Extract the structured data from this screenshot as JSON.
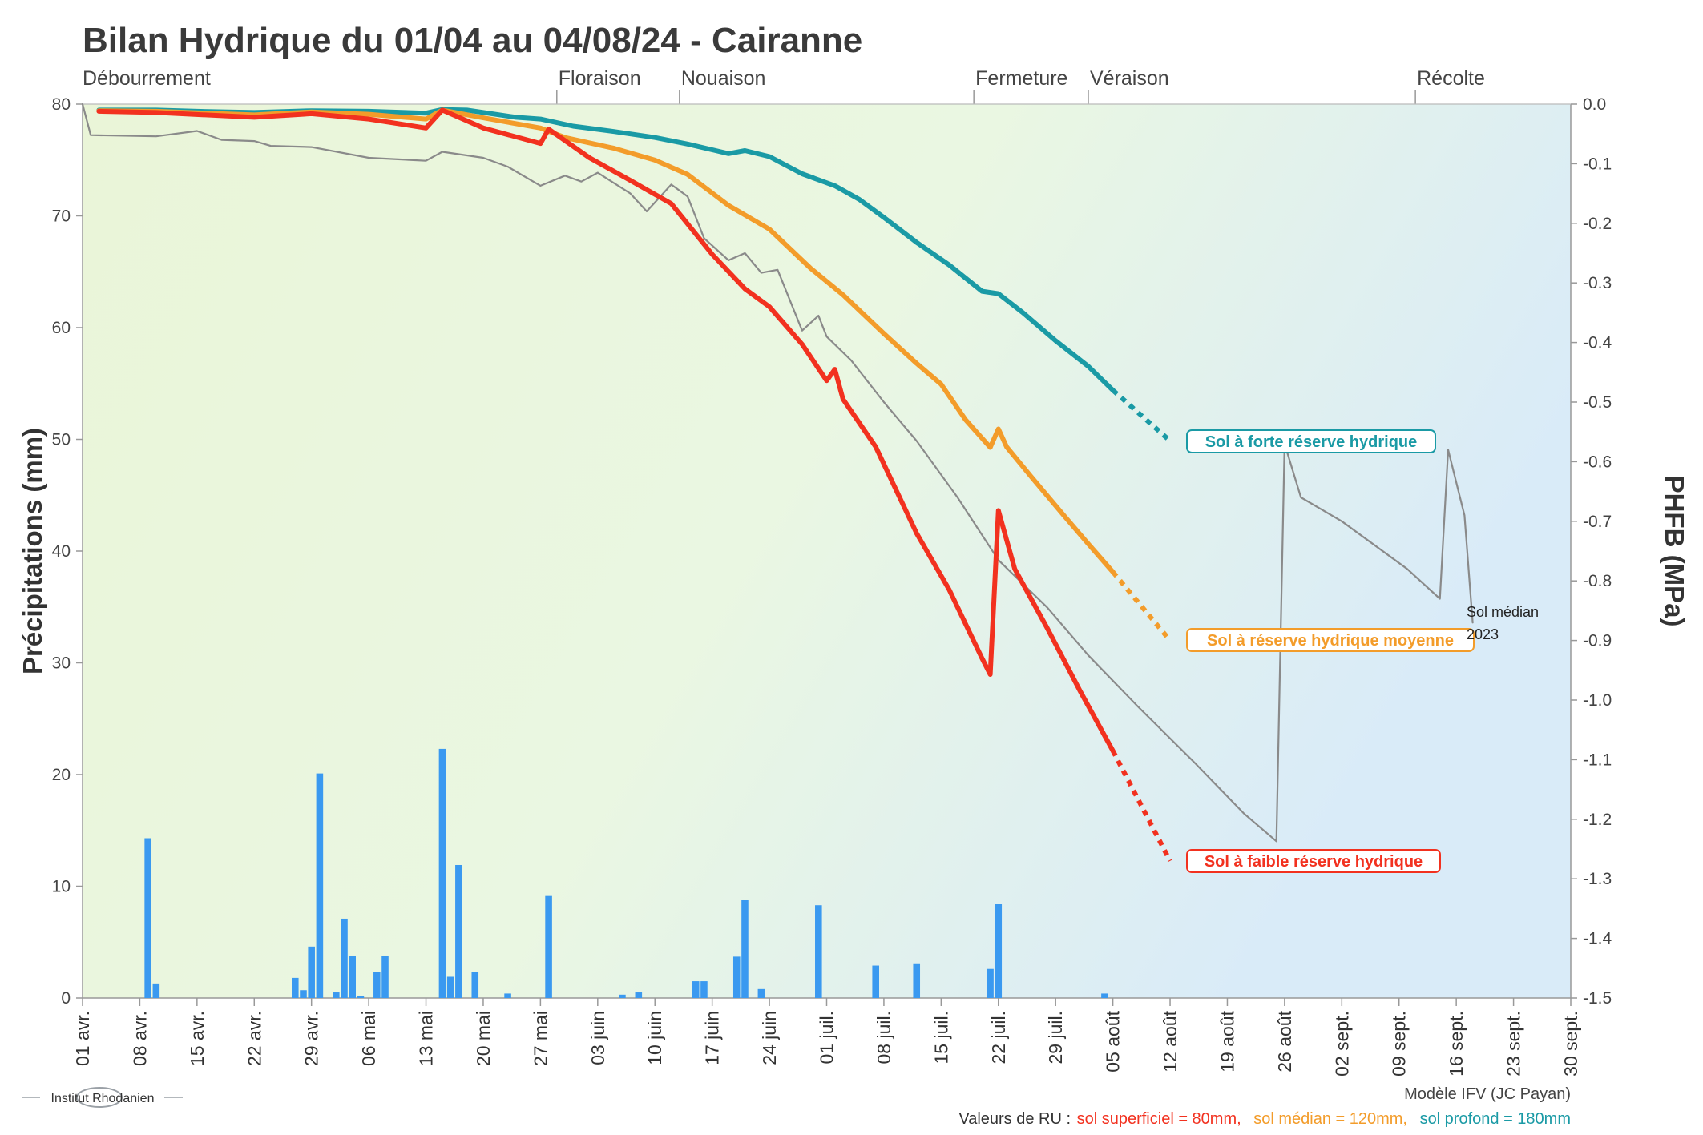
{
  "chart_data": {
    "type": "line",
    "title": "Bilan Hydrique du 01/04 au 04/08/24 - Cairanne",
    "ylabel": "Précipitations (mm)",
    "y2label": "PHFB (MPa)",
    "ylim": [
      0,
      80
    ],
    "y2lim": [
      -1.5,
      0.0
    ],
    "x_start": "2024-04-01",
    "x_end": "2024-09-30",
    "x_ticks": [
      "01 avr.",
      "08 avr.",
      "15 avr.",
      "22 avr.",
      "29 avr.",
      "06 mai",
      "13 mai",
      "20 mai",
      "27 mai",
      "03 juin",
      "10 juin",
      "17 juin",
      "24 juin",
      "01 juil.",
      "08 juil.",
      "15 juil.",
      "22 juil.",
      "29 juil.",
      "05 août",
      "12 août",
      "19 août",
      "26 août",
      "02 sept.",
      "09 sept.",
      "16 sept.",
      "23 sept.",
      "30 sept."
    ],
    "y_ticks": [
      "0",
      "10",
      "20",
      "30",
      "40",
      "50",
      "60",
      "70",
      "80"
    ],
    "y2_ticks": [
      "0.0",
      "-0.1",
      "-0.2",
      "-0.3",
      "-0.4",
      "-0.5",
      "-0.6",
      "-0.7",
      "-0.8",
      "-0.9",
      "-1.0",
      "-1.1",
      "-1.2",
      "-1.3",
      "-1.4",
      "-1.5"
    ],
    "stages": [
      {
        "label": "Débourrement",
        "date": "2024-04-01"
      },
      {
        "label": "Floraison",
        "date": "2024-05-29"
      },
      {
        "label": "Nouaison",
        "date": "2024-06-13"
      },
      {
        "label": "Fermeture",
        "date": "2024-07-19"
      },
      {
        "label": "Véraison",
        "date": "2024-08-02"
      },
      {
        "label": "Récolte",
        "date": "2024-09-11"
      }
    ],
    "precipitation": [
      {
        "date": "2024-04-09",
        "mm": 14.3
      },
      {
        "date": "2024-04-10",
        "mm": 1.3
      },
      {
        "date": "2024-04-27",
        "mm": 1.8
      },
      {
        "date": "2024-04-28",
        "mm": 0.7
      },
      {
        "date": "2024-04-29",
        "mm": 4.6
      },
      {
        "date": "2024-04-30",
        "mm": 20.1
      },
      {
        "date": "2024-05-02",
        "mm": 0.5
      },
      {
        "date": "2024-05-03",
        "mm": 7.1
      },
      {
        "date": "2024-05-04",
        "mm": 3.8
      },
      {
        "date": "2024-05-05",
        "mm": 0.2
      },
      {
        "date": "2024-05-07",
        "mm": 2.3
      },
      {
        "date": "2024-05-08",
        "mm": 3.8
      },
      {
        "date": "2024-05-15",
        "mm": 22.3
      },
      {
        "date": "2024-05-16",
        "mm": 1.9
      },
      {
        "date": "2024-05-17",
        "mm": 11.9
      },
      {
        "date": "2024-05-19",
        "mm": 2.3
      },
      {
        "date": "2024-05-23",
        "mm": 0.4
      },
      {
        "date": "2024-05-28",
        "mm": 9.2
      },
      {
        "date": "2024-06-06",
        "mm": 0.3
      },
      {
        "date": "2024-06-08",
        "mm": 0.5
      },
      {
        "date": "2024-06-15",
        "mm": 1.5
      },
      {
        "date": "2024-06-16",
        "mm": 1.5
      },
      {
        "date": "2024-06-20",
        "mm": 3.7
      },
      {
        "date": "2024-06-21",
        "mm": 8.8
      },
      {
        "date": "2024-06-23",
        "mm": 0.8
      },
      {
        "date": "2024-06-30",
        "mm": 8.3
      },
      {
        "date": "2024-07-07",
        "mm": 2.9
      },
      {
        "date": "2024-07-12",
        "mm": 3.1
      },
      {
        "date": "2024-07-21",
        "mm": 2.6
      },
      {
        "date": "2024-07-22",
        "mm": 8.4
      },
      {
        "date": "2024-08-04",
        "mm": 0.4
      }
    ],
    "series": [
      {
        "name": "Sol à forte réserve hydrique",
        "color": "#1a9aa5",
        "points": [
          [
            "2024-04-03",
            -0.01
          ],
          [
            "2024-04-10",
            -0.01
          ],
          [
            "2024-04-15",
            -0.012
          ],
          [
            "2024-04-22",
            -0.014
          ],
          [
            "2024-04-29",
            -0.011
          ],
          [
            "2024-05-06",
            -0.012
          ],
          [
            "2024-05-13",
            -0.015
          ],
          [
            "2024-05-15",
            -0.009
          ],
          [
            "2024-05-18",
            -0.01
          ],
          [
            "2024-05-24",
            -0.022
          ],
          [
            "2024-05-27",
            -0.025
          ],
          [
            "2024-05-31",
            -0.037
          ],
          [
            "2024-06-05",
            -0.046
          ],
          [
            "2024-06-10",
            -0.056
          ],
          [
            "2024-06-14",
            -0.067
          ],
          [
            "2024-06-19",
            -0.083
          ],
          [
            "2024-06-21",
            -0.078
          ],
          [
            "2024-06-24",
            -0.088
          ],
          [
            "2024-06-28",
            -0.117
          ],
          [
            "2024-07-02",
            -0.137
          ],
          [
            "2024-07-05",
            -0.16
          ],
          [
            "2024-07-08",
            -0.19
          ],
          [
            "2024-07-12",
            -0.232
          ],
          [
            "2024-07-16",
            -0.27
          ],
          [
            "2024-07-20",
            -0.314
          ],
          [
            "2024-07-22",
            -0.318
          ],
          [
            "2024-07-25",
            -0.35
          ],
          [
            "2024-07-29",
            -0.397
          ],
          [
            "2024-08-02",
            -0.44
          ],
          [
            "2024-08-05",
            -0.48
          ]
        ],
        "forecast": [
          [
            "2024-08-05",
            -0.48
          ],
          [
            "2024-08-12",
            -0.565
          ]
        ]
      },
      {
        "name": "Sol à réserve hydrique moyenne",
        "color": "#f39c2a",
        "points": [
          [
            "2024-04-03",
            -0.011
          ],
          [
            "2024-04-10",
            -0.012
          ],
          [
            "2024-04-22",
            -0.018
          ],
          [
            "2024-04-29",
            -0.013
          ],
          [
            "2024-05-06",
            -0.017
          ],
          [
            "2024-05-13",
            -0.025
          ],
          [
            "2024-05-15",
            -0.01
          ],
          [
            "2024-05-20",
            -0.023
          ],
          [
            "2024-05-27",
            -0.04
          ],
          [
            "2024-05-30",
            -0.056
          ],
          [
            "2024-06-05",
            -0.074
          ],
          [
            "2024-06-10",
            -0.094
          ],
          [
            "2024-06-14",
            -0.118
          ],
          [
            "2024-06-19",
            -0.17
          ],
          [
            "2024-06-24",
            -0.21
          ],
          [
            "2024-06-29",
            -0.275
          ],
          [
            "2024-07-03",
            -0.32
          ],
          [
            "2024-07-08",
            -0.385
          ],
          [
            "2024-07-12",
            -0.435
          ],
          [
            "2024-07-15",
            -0.47
          ],
          [
            "2024-07-18",
            -0.53
          ],
          [
            "2024-07-21",
            -0.576
          ],
          [
            "2024-07-22",
            -0.545
          ],
          [
            "2024-07-23",
            -0.575
          ],
          [
            "2024-07-26",
            -0.625
          ],
          [
            "2024-07-30",
            -0.69
          ],
          [
            "2024-08-02",
            -0.738
          ],
          [
            "2024-08-05",
            -0.785
          ]
        ],
        "forecast": [
          [
            "2024-08-05",
            -0.785
          ],
          [
            "2024-08-12",
            -0.9
          ]
        ]
      },
      {
        "name": "Sol à faible réserve hydrique",
        "color": "#f2311f",
        "points": [
          [
            "2024-04-03",
            -0.012
          ],
          [
            "2024-04-10",
            -0.014
          ],
          [
            "2024-04-22",
            -0.022
          ],
          [
            "2024-04-29",
            -0.016
          ],
          [
            "2024-05-06",
            -0.025
          ],
          [
            "2024-05-13",
            -0.04
          ],
          [
            "2024-05-15",
            -0.01
          ],
          [
            "2024-05-20",
            -0.04
          ],
          [
            "2024-05-27",
            -0.066
          ],
          [
            "2024-05-28",
            -0.042
          ],
          [
            "2024-06-02",
            -0.09
          ],
          [
            "2024-06-07",
            -0.128
          ],
          [
            "2024-06-12",
            -0.167
          ],
          [
            "2024-06-17",
            -0.252
          ],
          [
            "2024-06-21",
            -0.31
          ],
          [
            "2024-06-24",
            -0.34
          ],
          [
            "2024-06-28",
            -0.403
          ],
          [
            "2024-07-01",
            -0.464
          ],
          [
            "2024-07-02",
            -0.445
          ],
          [
            "2024-07-03",
            -0.495
          ],
          [
            "2024-07-07",
            -0.575
          ],
          [
            "2024-07-12",
            -0.72
          ],
          [
            "2024-07-16",
            -0.815
          ],
          [
            "2024-07-20",
            -0.93
          ],
          [
            "2024-07-21",
            -0.957
          ],
          [
            "2024-07-22",
            -0.682
          ],
          [
            "2024-07-24",
            -0.78
          ],
          [
            "2024-07-28",
            -0.88
          ],
          [
            "2024-08-01",
            -0.985
          ],
          [
            "2024-08-05",
            -1.085
          ]
        ],
        "forecast": [
          [
            "2024-08-05",
            -1.085
          ],
          [
            "2024-08-12",
            -1.27
          ]
        ]
      },
      {
        "name": "Sol médian 2023",
        "color": "#8a8a8a",
        "points": [
          [
            "2024-04-01",
            0.0
          ],
          [
            "2024-04-02",
            -0.052
          ],
          [
            "2024-04-10",
            -0.054
          ],
          [
            "2024-04-15",
            -0.045
          ],
          [
            "2024-04-18",
            -0.06
          ],
          [
            "2024-04-22",
            -0.062
          ],
          [
            "2024-04-24",
            -0.07
          ],
          [
            "2024-04-29",
            -0.072
          ],
          [
            "2024-05-06",
            -0.09
          ],
          [
            "2024-05-13",
            -0.095
          ],
          [
            "2024-05-15",
            -0.08
          ],
          [
            "2024-05-20",
            -0.09
          ],
          [
            "2024-05-23",
            -0.105
          ],
          [
            "2024-05-27",
            -0.137
          ],
          [
            "2024-05-30",
            -0.12
          ],
          [
            "2024-06-01",
            -0.13
          ],
          [
            "2024-06-03",
            -0.115
          ],
          [
            "2024-06-07",
            -0.15
          ],
          [
            "2024-06-09",
            -0.18
          ],
          [
            "2024-06-12",
            -0.135
          ],
          [
            "2024-06-14",
            -0.155
          ],
          [
            "2024-06-16",
            -0.225
          ],
          [
            "2024-06-19",
            -0.262
          ],
          [
            "2024-06-21",
            -0.25
          ],
          [
            "2024-06-23",
            -0.283
          ],
          [
            "2024-06-25",
            -0.278
          ],
          [
            "2024-06-28",
            -0.38
          ],
          [
            "2024-06-30",
            -0.355
          ],
          [
            "2024-07-01",
            -0.39
          ],
          [
            "2024-07-04",
            -0.43
          ],
          [
            "2024-07-08",
            -0.5
          ],
          [
            "2024-07-12",
            -0.565
          ],
          [
            "2024-07-17",
            -0.66
          ],
          [
            "2024-07-22",
            -0.765
          ],
          [
            "2024-07-28",
            -0.845
          ],
          [
            "2024-08-02",
            -0.925
          ],
          [
            "2024-08-08",
            -1.01
          ],
          [
            "2024-08-15",
            -1.105
          ],
          [
            "2024-08-21",
            -1.19
          ],
          [
            "2024-08-25",
            -1.237
          ],
          [
            "2024-08-26",
            -0.57
          ],
          [
            "2024-08-28",
            -0.66
          ],
          [
            "2024-09-02",
            -0.7
          ],
          [
            "2024-09-10",
            -0.78
          ],
          [
            "2024-09-14",
            -0.83
          ],
          [
            "2024-09-15",
            -0.58
          ],
          [
            "2024-09-17",
            -0.69
          ],
          [
            "2024-09-18",
            -0.87
          ]
        ]
      }
    ],
    "series_labels": [
      {
        "text": "Sol à forte réserve hydrique",
        "color": "#1a9aa5"
      },
      {
        "text": "Sol à réserve hydrique moyenne",
        "color": "#f39c2a"
      },
      {
        "text": "Sol à faible réserve hydrique",
        "color": "#f2311f"
      }
    ],
    "median_note": [
      "Sol médian",
      "2023"
    ],
    "footer": {
      "model": "Modèle IFV (JC Payan)",
      "ru_prefix": "Valeurs de RU : ",
      "ru_superficiel": "sol superficiel = 80mm,",
      "ru_median": "sol médian = 120mm,",
      "ru_profond": "sol profond = 180mm"
    },
    "logo_text": "Institut Rhodanien",
    "colors": {
      "precip_bar": "#3a99f0",
      "zone_blue": "#dcecf8",
      "zone_green": "#eaf5d8",
      "zone_yellow": "#f4eca0",
      "zone_orange": "#f9d98c",
      "axis": "#999999"
    }
  }
}
